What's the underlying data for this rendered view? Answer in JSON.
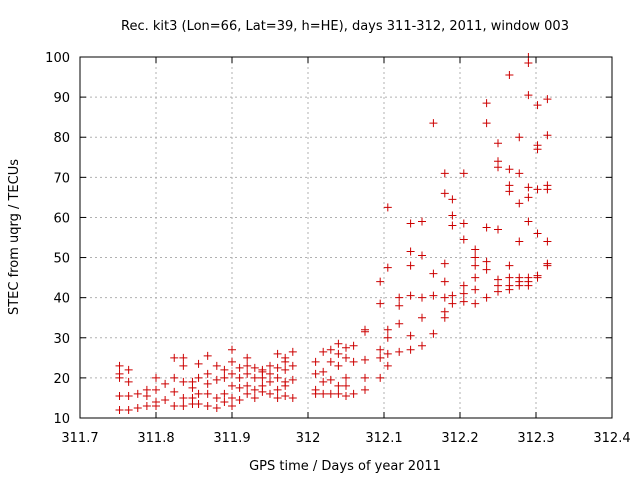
{
  "chart_data": {
    "type": "scatter",
    "title": "Rec. kit3 (Lon=66, Lat=39, h=HE), days 311-312, 2011, window 003",
    "xlabel": "GPS time / Days of year 2011",
    "ylabel": "STEC from uqrg / TECUs",
    "xlim": [
      311.7,
      312.4
    ],
    "ylim": [
      10,
      100
    ],
    "x_ticks": [
      311.7,
      311.8,
      311.9,
      312.0,
      312.1,
      312.2,
      312.3,
      312.4
    ],
    "x_tick_labels": [
      "311.7",
      "311.8",
      "311.9",
      "312",
      "312.1",
      "312.2",
      "312.3",
      "312.4"
    ],
    "y_ticks": [
      10,
      20,
      30,
      40,
      50,
      60,
      70,
      80,
      90,
      100
    ],
    "y_tick_labels": [
      "10",
      "20",
      "30",
      "40",
      "50",
      "60",
      "70",
      "80",
      "90",
      "100"
    ],
    "grid": true,
    "marker": "+",
    "color": "#cc0000",
    "series": [
      {
        "points": [
          [
            311.752,
            23
          ],
          [
            311.752,
            21
          ],
          [
            311.752,
            20
          ],
          [
            311.752,
            15.5
          ],
          [
            311.752,
            12
          ],
          [
            311.764,
            22
          ],
          [
            311.764,
            19
          ],
          [
            311.764,
            15.5
          ],
          [
            311.764,
            12
          ],
          [
            311.776,
            16
          ],
          [
            311.776,
            12.5
          ],
          [
            311.788,
            17
          ],
          [
            311.788,
            15.5
          ],
          [
            311.788,
            13
          ],
          [
            311.8,
            20
          ],
          [
            311.8,
            17
          ],
          [
            311.8,
            14
          ],
          [
            311.8,
            13
          ],
          [
            311.812,
            18.5
          ],
          [
            311.812,
            14.5
          ],
          [
            311.824,
            20
          ],
          [
            311.824,
            16.5
          ],
          [
            311.824,
            13
          ],
          [
            311.824,
            25
          ],
          [
            311.836,
            25
          ],
          [
            311.836,
            23
          ],
          [
            311.836,
            19
          ],
          [
            311.836,
            15
          ],
          [
            311.836,
            13
          ],
          [
            311.848,
            19
          ],
          [
            311.848,
            17.5
          ],
          [
            311.848,
            15
          ],
          [
            311.848,
            13.5
          ],
          [
            311.856,
            23.5
          ],
          [
            311.856,
            20
          ],
          [
            311.856,
            16
          ],
          [
            311.856,
            13.5
          ],
          [
            311.868,
            25.5
          ],
          [
            311.868,
            21
          ],
          [
            311.868,
            18.5
          ],
          [
            311.868,
            16
          ],
          [
            311.868,
            13
          ],
          [
            311.88,
            23
          ],
          [
            311.88,
            19.5
          ],
          [
            311.88,
            15
          ],
          [
            311.88,
            12.5
          ],
          [
            311.89,
            22
          ],
          [
            311.89,
            20
          ],
          [
            311.89,
            16
          ],
          [
            311.89,
            14
          ],
          [
            311.9,
            27
          ],
          [
            311.9,
            24
          ],
          [
            311.9,
            21
          ],
          [
            311.9,
            18
          ],
          [
            311.9,
            15
          ],
          [
            311.9,
            13
          ],
          [
            311.91,
            22.5
          ],
          [
            311.91,
            20
          ],
          [
            311.91,
            17.5
          ],
          [
            311.91,
            14.5
          ],
          [
            311.92,
            25
          ],
          [
            311.92,
            23
          ],
          [
            311.92,
            21
          ],
          [
            311.92,
            18
          ],
          [
            311.92,
            16
          ],
          [
            311.93,
            22.5
          ],
          [
            311.93,
            20
          ],
          [
            311.93,
            17
          ],
          [
            311.93,
            15
          ],
          [
            311.94,
            22
          ],
          [
            311.94,
            21.5
          ],
          [
            311.94,
            20
          ],
          [
            311.94,
            18
          ],
          [
            311.94,
            16.5
          ],
          [
            311.95,
            23
          ],
          [
            311.95,
            21
          ],
          [
            311.95,
            19
          ],
          [
            311.95,
            16
          ],
          [
            311.96,
            26
          ],
          [
            311.96,
            22.5
          ],
          [
            311.96,
            20
          ],
          [
            311.96,
            17
          ],
          [
            311.96,
            15
          ],
          [
            311.97,
            25
          ],
          [
            311.97,
            24
          ],
          [
            311.97,
            22
          ],
          [
            311.97,
            19
          ],
          [
            311.97,
            18
          ],
          [
            311.97,
            15.5
          ],
          [
            311.98,
            26.5
          ],
          [
            311.98,
            23
          ],
          [
            311.98,
            19.5
          ],
          [
            311.98,
            15
          ],
          [
            312.01,
            24
          ],
          [
            312.01,
            21
          ],
          [
            312.01,
            17
          ],
          [
            312.01,
            16
          ],
          [
            312.02,
            26.5
          ],
          [
            312.02,
            21.5
          ],
          [
            312.02,
            19
          ],
          [
            312.02,
            16
          ],
          [
            312.03,
            27
          ],
          [
            312.03,
            24
          ],
          [
            312.03,
            19.5
          ],
          [
            312.03,
            16
          ],
          [
            312.04,
            28.5
          ],
          [
            312.04,
            26
          ],
          [
            312.04,
            23
          ],
          [
            312.04,
            18
          ],
          [
            312.04,
            16
          ],
          [
            312.05,
            27.5
          ],
          [
            312.05,
            25
          ],
          [
            312.05,
            20
          ],
          [
            312.05,
            18
          ],
          [
            312.05,
            15.5
          ],
          [
            312.06,
            28
          ],
          [
            312.06,
            24
          ],
          [
            312.06,
            16
          ],
          [
            312.075,
            32
          ],
          [
            312.075,
            31.5
          ],
          [
            312.075,
            24.5
          ],
          [
            312.075,
            20
          ],
          [
            312.075,
            17
          ],
          [
            312.095,
            44
          ],
          [
            312.095,
            38.5
          ],
          [
            312.095,
            27
          ],
          [
            312.095,
            25
          ],
          [
            312.095,
            20
          ],
          [
            312.105,
            62.5
          ],
          [
            312.105,
            47.5
          ],
          [
            312.105,
            32
          ],
          [
            312.105,
            30
          ],
          [
            312.105,
            26
          ],
          [
            312.105,
            23
          ],
          [
            312.12,
            40
          ],
          [
            312.12,
            38
          ],
          [
            312.12,
            33.5
          ],
          [
            312.12,
            26.5
          ],
          [
            312.135,
            58.5
          ],
          [
            312.135,
            51.5
          ],
          [
            312.135,
            48
          ],
          [
            312.135,
            40.5
          ],
          [
            312.135,
            30.5
          ],
          [
            312.135,
            27
          ],
          [
            312.15,
            59
          ],
          [
            312.15,
            50.5
          ],
          [
            312.15,
            40
          ],
          [
            312.15,
            35
          ],
          [
            312.15,
            28
          ],
          [
            312.165,
            83.5
          ],
          [
            312.165,
            46
          ],
          [
            312.165,
            40.5
          ],
          [
            312.165,
            31
          ],
          [
            312.18,
            71
          ],
          [
            312.18,
            66
          ],
          [
            312.18,
            48.5
          ],
          [
            312.18,
            44
          ],
          [
            312.18,
            40
          ],
          [
            312.18,
            35
          ],
          [
            312.18,
            36.5
          ],
          [
            312.19,
            64.5
          ],
          [
            312.19,
            60.5
          ],
          [
            312.19,
            58
          ],
          [
            312.19,
            40.5
          ],
          [
            312.19,
            38.5
          ],
          [
            312.205,
            71
          ],
          [
            312.205,
            58.5
          ],
          [
            312.205,
            54.5
          ],
          [
            312.205,
            43
          ],
          [
            312.205,
            41
          ],
          [
            312.205,
            39
          ],
          [
            312.22,
            52
          ],
          [
            312.22,
            50
          ],
          [
            312.22,
            48
          ],
          [
            312.22,
            45
          ],
          [
            312.22,
            42
          ],
          [
            312.22,
            38.5
          ],
          [
            312.235,
            88.5
          ],
          [
            312.235,
            83.5
          ],
          [
            312.235,
            57.5
          ],
          [
            312.235,
            49
          ],
          [
            312.235,
            47
          ],
          [
            312.235,
            40
          ],
          [
            312.25,
            78.5
          ],
          [
            312.25,
            74
          ],
          [
            312.25,
            72.5
          ],
          [
            312.25,
            57
          ],
          [
            312.25,
            44.5
          ],
          [
            312.25,
            43
          ],
          [
            312.25,
            41.5
          ],
          [
            312.265,
            95.5
          ],
          [
            312.265,
            72
          ],
          [
            312.265,
            68
          ],
          [
            312.265,
            66.5
          ],
          [
            312.265,
            48
          ],
          [
            312.265,
            45
          ],
          [
            312.265,
            43
          ],
          [
            312.265,
            42
          ],
          [
            312.278,
            80
          ],
          [
            312.278,
            71
          ],
          [
            312.278,
            63.5
          ],
          [
            312.278,
            54
          ],
          [
            312.278,
            45
          ],
          [
            312.278,
            43
          ],
          [
            312.278,
            44
          ],
          [
            312.29,
            100
          ],
          [
            312.29,
            98.5
          ],
          [
            312.29,
            90.5
          ],
          [
            312.29,
            67.5
          ],
          [
            312.29,
            65
          ],
          [
            312.29,
            59
          ],
          [
            312.29,
            45
          ],
          [
            312.29,
            43
          ],
          [
            312.29,
            44
          ],
          [
            312.302,
            88
          ],
          [
            312.302,
            78
          ],
          [
            312.302,
            77
          ],
          [
            312.302,
            67
          ],
          [
            312.302,
            56
          ],
          [
            312.302,
            45.5
          ],
          [
            312.302,
            45
          ],
          [
            312.315,
            89.5
          ],
          [
            312.315,
            80.5
          ],
          [
            312.315,
            68
          ],
          [
            312.315,
            67
          ],
          [
            312.315,
            54
          ],
          [
            312.315,
            48.5
          ],
          [
            312.315,
            48
          ]
        ]
      }
    ]
  }
}
